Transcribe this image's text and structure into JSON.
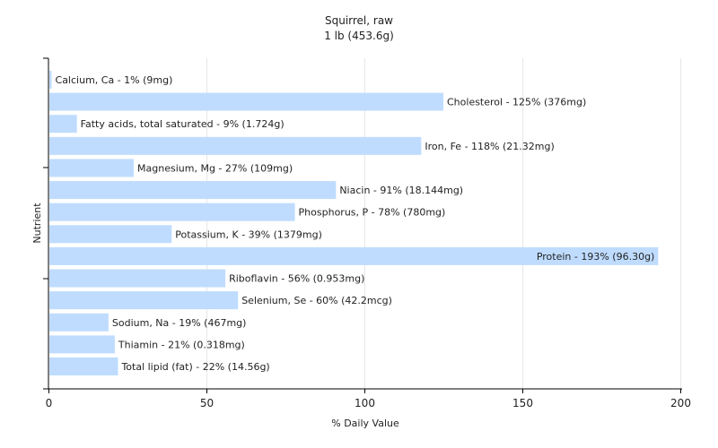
{
  "chart_data": {
    "type": "bar",
    "orientation": "horizontal",
    "title": "Squirrel, raw",
    "subtitle": "1 lb (453.6g)",
    "xlabel": "% Daily Value",
    "ylabel": "Nutrient",
    "xlim": [
      0,
      200
    ],
    "xticks": [
      0,
      50,
      100,
      150,
      200
    ],
    "grid": true,
    "bar_color": "#bfdcff",
    "categories": [
      "Calcium, Ca",
      "Cholesterol",
      "Fatty acids, total saturated",
      "Iron, Fe",
      "Magnesium, Mg",
      "Niacin",
      "Phosphorus, P",
      "Potassium, K",
      "Protein",
      "Riboflavin",
      "Selenium, Se",
      "Sodium, Na",
      "Thiamin",
      "Total lipid (fat)"
    ],
    "values": [
      1,
      125,
      9,
      118,
      27,
      91,
      78,
      39,
      193,
      56,
      60,
      19,
      21,
      22
    ],
    "labels": [
      "Calcium, Ca - 1% (9mg)",
      "Cholesterol - 125% (376mg)",
      "Fatty acids, total saturated - 9% (1.724g)",
      "Iron, Fe - 118% (21.32mg)",
      "Magnesium, Mg - 27% (109mg)",
      "Niacin - 91% (18.144mg)",
      "Phosphorus, P - 78% (780mg)",
      "Potassium, K - 39% (1379mg)",
      "Protein - 193% (96.30g)",
      "Riboflavin - 56% (0.953mg)",
      "Selenium, Se - 60% (42.2mcg)",
      "Sodium, Na - 19% (467mg)",
      "Thiamin - 21% (0.318mg)",
      "Total lipid (fat) - 22% (14.56g)"
    ]
  }
}
